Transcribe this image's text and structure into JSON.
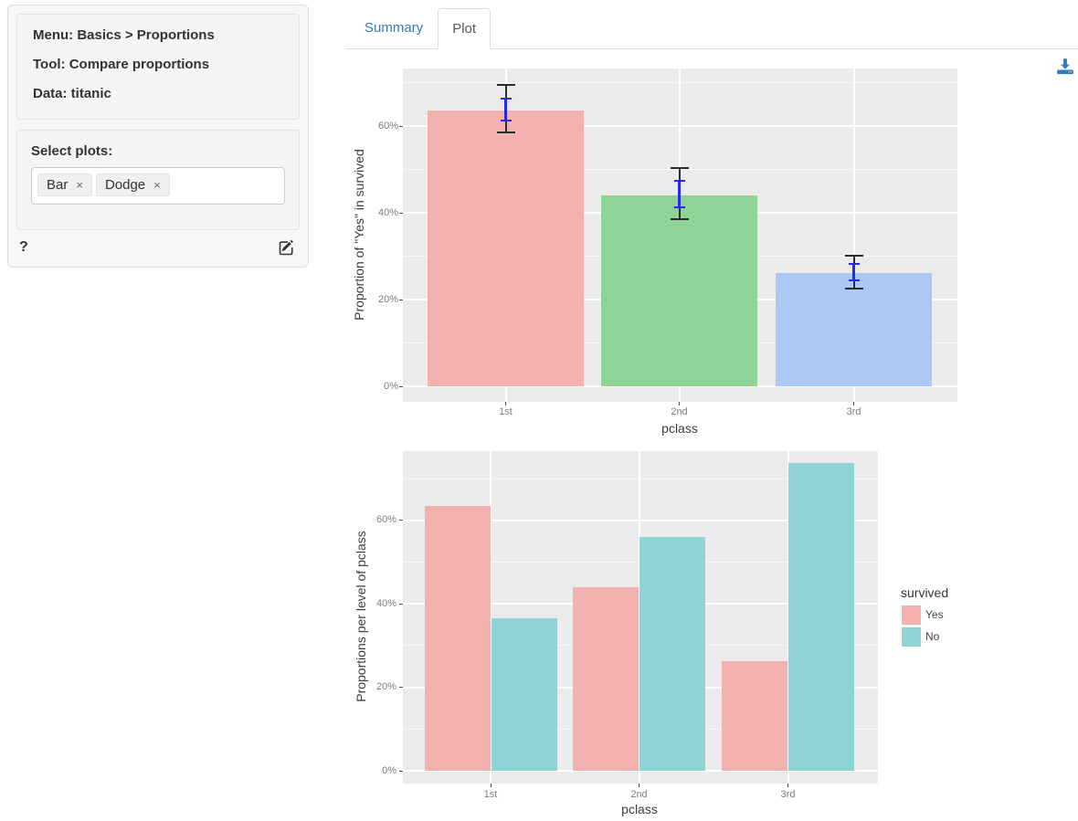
{
  "sidebar": {
    "info": {
      "menu": "Menu: Basics > Proportions",
      "tool": "Tool: Compare proportions",
      "data": "Data: titanic"
    },
    "select_plots_label": "Select plots:",
    "selected_plots": [
      "Bar",
      "Dodge"
    ],
    "remove_symbol": "×",
    "help_label": "?"
  },
  "tabs": [
    {
      "label": "Summary",
      "active": false
    },
    {
      "label": "Plot",
      "active": true
    }
  ],
  "icons": {
    "download": "download-icon",
    "edit": "edit-icon",
    "help": "question-mark-icon",
    "tag_remove": "remove-x-icon"
  },
  "colors": {
    "accent_blue": "#337ab7",
    "active_tab_text": "#555555",
    "panel_bg": "#EBEBEB",
    "grid": "#FFFFFF",
    "bar_pink": "#F2B1AE",
    "bar_green": "#90D397",
    "bar_blue": "#ABC7F3",
    "bar_teal": "#8ED4D4",
    "error_outer": "#2b2b2b",
    "error_inner": "#2929e8",
    "download_icon": "#2e7db6",
    "axis_text": "#7d7d7d",
    "axis_title": "#3d3d3d"
  },
  "chart_data": [
    {
      "type": "bar",
      "title": "",
      "xlabel": "pclass",
      "ylabel": "Proportion of \"Yes\" in survived",
      "categories": [
        "1st",
        "2nd",
        "3rd"
      ],
      "values": [
        63.5,
        44.0,
        26.2
      ],
      "bar_colors": [
        "#F2B1AE",
        "#90D397",
        "#ABC7F3"
      ],
      "error_bars_outer": [
        [
          58.3,
          69.7
        ],
        [
          38.3,
          50.5
        ],
        [
          22.3,
          30.3
        ]
      ],
      "error_bars_inner": [
        [
          61.1,
          66.5
        ],
        [
          41.1,
          47.6
        ],
        [
          24.2,
          28.4
        ]
      ],
      "yticks": [
        0,
        20,
        40,
        60
      ],
      "ytick_labels": [
        "0%",
        "20%",
        "40%",
        "60%"
      ],
      "yminor": [
        10,
        30,
        50,
        70
      ],
      "ylim": [
        0,
        73.3
      ],
      "grid": true,
      "legend": null
    },
    {
      "type": "bar",
      "title": "",
      "xlabel": "pclass",
      "ylabel": "Proportions per level of pclass",
      "categories": [
        "1st",
        "2nd",
        "3rd"
      ],
      "series": [
        {
          "name": "Yes",
          "color": "#F2B1AE",
          "values": [
            63.5,
            44.0,
            26.2
          ]
        },
        {
          "name": "No",
          "color": "#8ED4D4",
          "values": [
            36.5,
            56.0,
            73.8
          ]
        }
      ],
      "yticks": [
        0,
        20,
        40,
        60
      ],
      "ytick_labels": [
        "0%",
        "20%",
        "40%",
        "60%"
      ],
      "yminor": [
        10,
        30,
        50,
        70
      ],
      "ylim": [
        0,
        76.6
      ],
      "grid": true,
      "legend": {
        "title": "survived",
        "position": "right"
      }
    }
  ]
}
